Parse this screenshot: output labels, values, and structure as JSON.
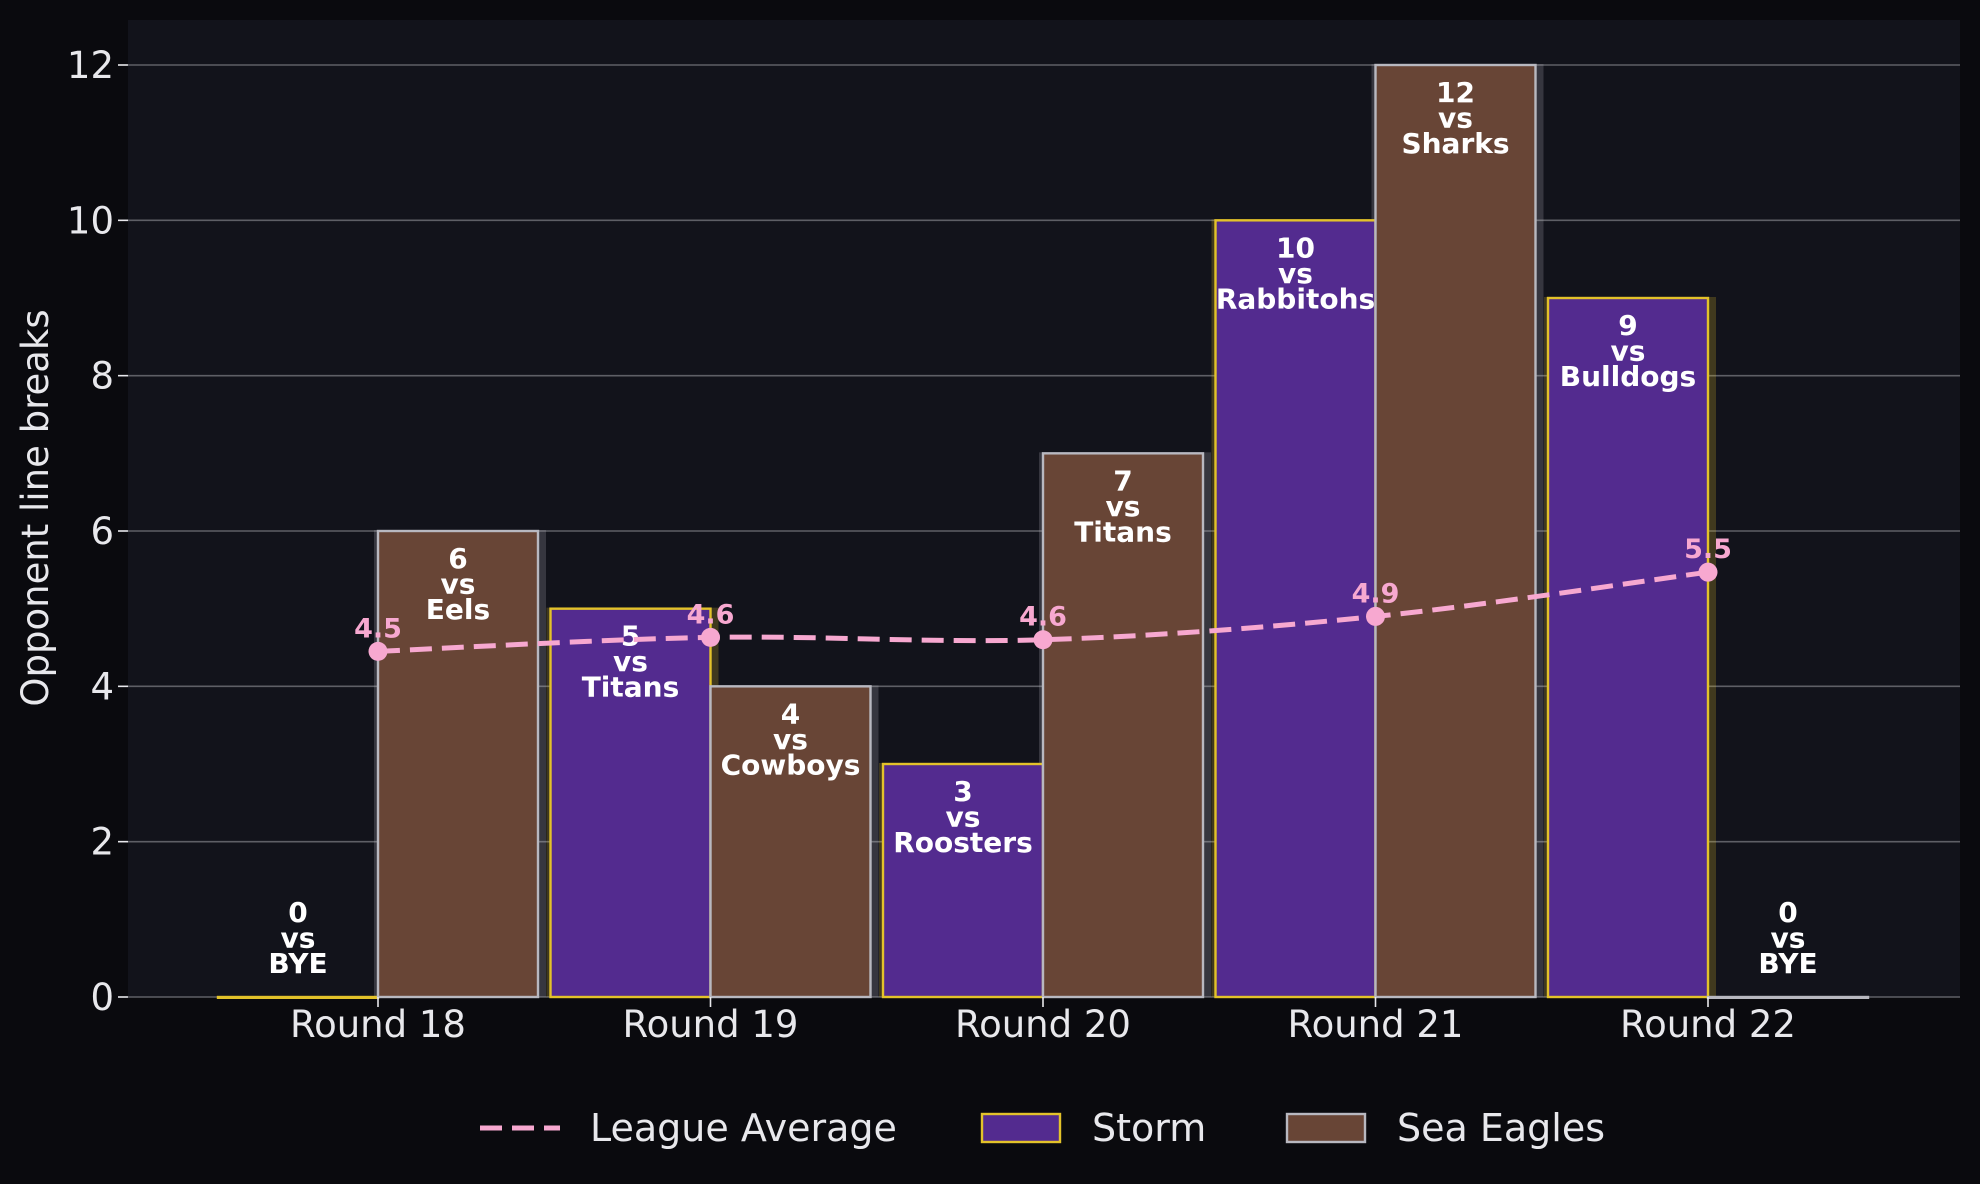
{
  "chart_data": {
    "type": "bar",
    "ylabel": "Opponent line breaks",
    "ylim": [
      0,
      12.6
    ],
    "yticks": [
      0,
      2,
      4,
      6,
      8,
      10,
      12
    ],
    "grid": true,
    "legend_position": "bottom-center",
    "categories": [
      "Round 18",
      "Round 19",
      "Round 20",
      "Round 21",
      "Round 22"
    ],
    "series": [
      {
        "name": "Storm",
        "type": "bar",
        "fill": "#532b8f",
        "edge": "#e3c22a",
        "values": [
          0,
          5,
          3,
          10,
          9
        ],
        "opponents": [
          "BYE",
          "Titans",
          "Roosters",
          "Rabbitohs",
          "Bulldogs"
        ]
      },
      {
        "name": "Sea Eagles",
        "type": "bar",
        "fill": "#684536",
        "edge": "#b8b8c0",
        "values": [
          6,
          4,
          7,
          12,
          0
        ],
        "opponents": [
          "Eels",
          "Cowboys",
          "Titans",
          "Sharks",
          "BYE"
        ]
      },
      {
        "name": "League Average",
        "type": "line",
        "style": "dashed",
        "color": "#f7a8d0",
        "values": [
          4.45,
          4.63,
          4.6,
          4.9,
          5.47
        ],
        "labels": [
          "4.5",
          "4.6",
          "4.6",
          "4.9",
          "5.5"
        ]
      }
    ],
    "vs_word": "vs"
  },
  "colors": {
    "background": "#0a0a0e",
    "plot_background": "#12131b",
    "grid": "#5e5f66",
    "text": "#e8e8ec"
  }
}
